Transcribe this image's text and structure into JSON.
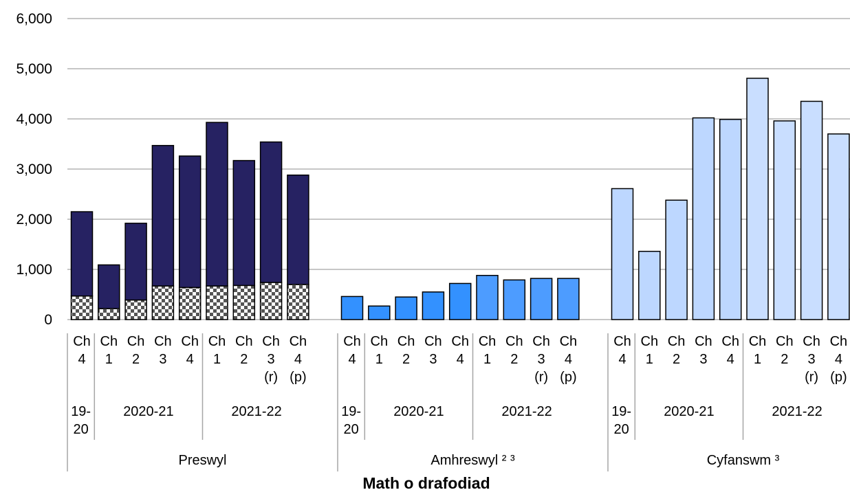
{
  "chart_data": {
    "type": "bar",
    "stacked": true,
    "xlabel": "Math o drafodiad",
    "ylabel": "",
    "ylim": [
      0,
      6000
    ],
    "yticks": [
      "0",
      "1,000",
      "2,000",
      "3,000",
      "4,000",
      "5,000",
      "6,000"
    ],
    "grid": true,
    "legend": "none",
    "colors": {
      "preswyl_top": "#262262",
      "preswyl_pattern_dark": "#555555",
      "amhreswyl": "#3391ff",
      "amhreswyl_light": "#4d9cff",
      "cyfanswm": "#bdd7ff",
      "cyfanswm_light": "#c9deff"
    },
    "groups": [
      {
        "label": "Preswyl",
        "quarters": [
          {
            "q": "Ch",
            "n": "4",
            "flag": ""
          },
          {
            "q": "Ch",
            "n": "1",
            "flag": ""
          },
          {
            "q": "Ch",
            "n": "2",
            "flag": ""
          },
          {
            "q": "Ch",
            "n": "3",
            "flag": ""
          },
          {
            "q": "Ch",
            "n": "4",
            "flag": ""
          },
          {
            "q": "Ch",
            "n": "1",
            "flag": ""
          },
          {
            "q": "Ch",
            "n": "2",
            "flag": ""
          },
          {
            "q": "Ch",
            "n": "3",
            "flag": "(r)"
          },
          {
            "q": "Ch",
            "n": "4",
            "flag": "(p)"
          }
        ],
        "years": [
          {
            "lines": [
              "19-",
              "20"
            ],
            "span": 1
          },
          {
            "lines": [
              "2020-21"
            ],
            "span": 4
          },
          {
            "lines": [
              "2021-22"
            ],
            "span": 4
          }
        ],
        "series": [
          {
            "values": [
              470,
              220,
              390,
              670,
              640,
              670,
              680,
              740,
              700
            ]
          },
          {
            "values": [
              1680,
              870,
              1530,
              2800,
              2620,
              3260,
              2490,
              2800,
              2180
            ]
          }
        ]
      },
      {
        "label": "Amhreswyl ² ³",
        "quarters": [
          {
            "q": "Ch",
            "n": "4",
            "flag": ""
          },
          {
            "q": "Ch",
            "n": "1",
            "flag": ""
          },
          {
            "q": "Ch",
            "n": "2",
            "flag": ""
          },
          {
            "q": "Ch",
            "n": "3",
            "flag": ""
          },
          {
            "q": "Ch",
            "n": "4",
            "flag": ""
          },
          {
            "q": "Ch",
            "n": "1",
            "flag": ""
          },
          {
            "q": "Ch",
            "n": "2",
            "flag": ""
          },
          {
            "q": "Ch",
            "n": "3",
            "flag": "(r)"
          },
          {
            "q": "Ch",
            "n": "4",
            "flag": "(p)"
          }
        ],
        "years": [
          {
            "lines": [
              "19-",
              "20"
            ],
            "span": 1
          },
          {
            "lines": [
              "2020-21"
            ],
            "span": 4
          },
          {
            "lines": [
              "2021-22"
            ],
            "span": 4
          }
        ],
        "series": [
          {
            "values": [
              460,
              270,
              450,
              550,
              720,
              880,
              790,
              820,
              820
            ]
          }
        ]
      },
      {
        "label": "Cyfanswm ³",
        "quarters": [
          {
            "q": "Ch",
            "n": "4",
            "flag": ""
          },
          {
            "q": "Ch",
            "n": "1",
            "flag": ""
          },
          {
            "q": "Ch",
            "n": "2",
            "flag": ""
          },
          {
            "q": "Ch",
            "n": "3",
            "flag": ""
          },
          {
            "q": "Ch",
            "n": "4",
            "flag": ""
          },
          {
            "q": "Ch",
            "n": "1",
            "flag": ""
          },
          {
            "q": "Ch",
            "n": "2",
            "flag": ""
          },
          {
            "q": "Ch",
            "n": "3",
            "flag": "(r)"
          },
          {
            "q": "Ch",
            "n": "4",
            "flag": "(p)"
          }
        ],
        "years": [
          {
            "lines": [
              "19-",
              "20"
            ],
            "span": 1
          },
          {
            "lines": [
              "2020-21"
            ],
            "span": 4
          },
          {
            "lines": [
              "2021-22"
            ],
            "span": 4
          }
        ],
        "series": [
          {
            "values": [
              2610,
              1360,
              2380,
              4020,
              3990,
              4810,
              3960,
              4350,
              3700
            ]
          }
        ]
      }
    ]
  }
}
